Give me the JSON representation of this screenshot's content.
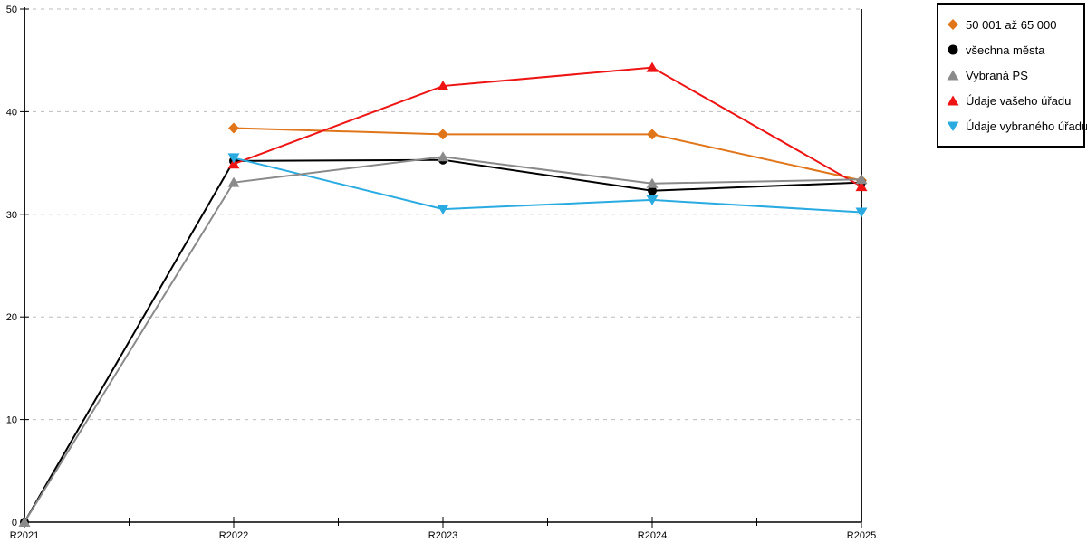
{
  "chart_data": {
    "type": "line",
    "title": "",
    "xlabel": "",
    "ylabel": "",
    "categories": [
      "R2021",
      "R2022",
      "R2023",
      "R2024",
      "R2025"
    ],
    "series": [
      {
        "name": "50 001 až 65 000",
        "color": "#e0751a",
        "marker": "diamond",
        "values": [
          null,
          38.4,
          37.8,
          37.8,
          33.3
        ]
      },
      {
        "name": "všechna města",
        "color": "#000000",
        "marker": "circle",
        "values": [
          0,
          35.2,
          35.3,
          32.3,
          33.1
        ]
      },
      {
        "name": "Vybraná PS",
        "color": "#8a8a8a",
        "marker": "triangle-up",
        "values": [
          0,
          33.1,
          35.6,
          33.0,
          33.4
        ]
      },
      {
        "name": "Údaje vašeho úřadu",
        "color": "#ee1414",
        "marker": "triangle-up",
        "values": [
          null,
          34.9,
          42.5,
          44.3,
          32.7
        ]
      },
      {
        "name": "Údaje vybraného úřadu",
        "color": "#29abe2",
        "marker": "triangle-down",
        "values": [
          null,
          35.5,
          30.5,
          31.4,
          30.2
        ]
      }
    ],
    "ylim": [
      0,
      50
    ],
    "y_ticks": [
      0,
      10,
      20,
      30,
      40,
      50
    ],
    "grid": "horizontal-dashed",
    "grid_color": "#bdbdbd",
    "axis_color": "#000000",
    "background_color": "#ffffff",
    "legend_position": "top-right"
  }
}
